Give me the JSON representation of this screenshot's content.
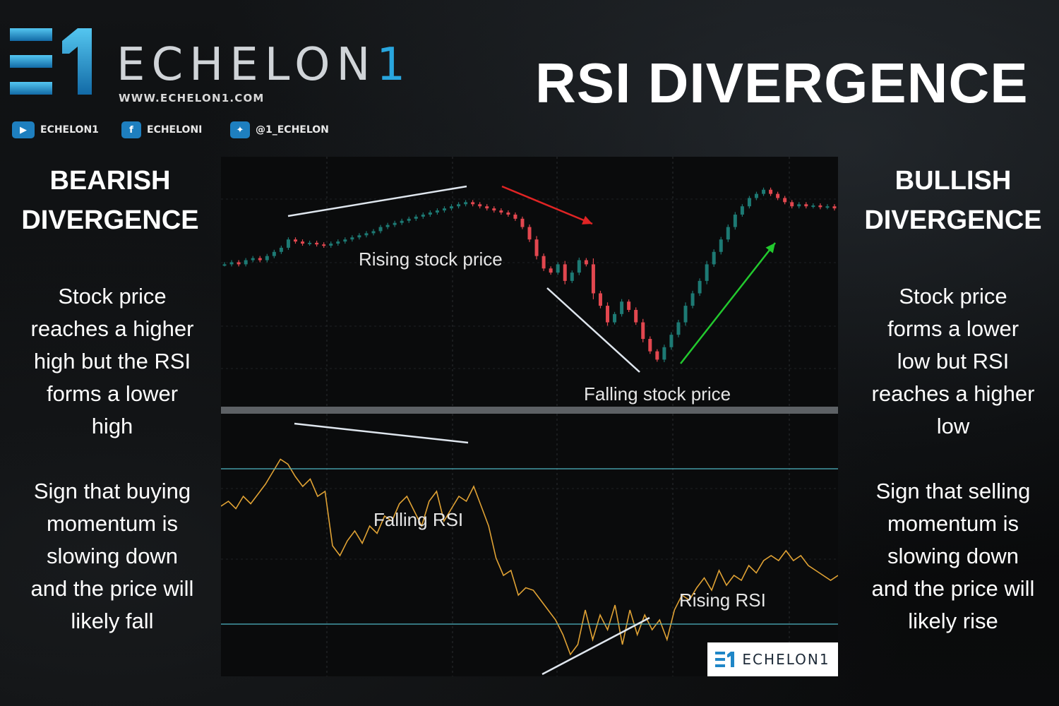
{
  "header": {
    "brand_name": "ECHELON",
    "brand_number": "1",
    "website": "WWW.ECHELON1.COM",
    "title": "RSI DIVERGENCE"
  },
  "social": [
    {
      "icon": "youtube-icon",
      "label": "ECHELON1"
    },
    {
      "icon": "facebook-icon",
      "label": "ECHELONI"
    },
    {
      "icon": "twitter-icon",
      "label": "@1_ECHELON"
    }
  ],
  "left": {
    "heading_1": "BEARISH",
    "heading_2": "DIVERGENCE",
    "lines_1": [
      "Stock price",
      "reaches a higher",
      "high but the RSI",
      "forms a lower",
      "high"
    ],
    "lines_2": [
      "Sign that buying",
      "momentum is",
      "slowing down",
      "and the price will",
      "likely fall"
    ]
  },
  "right": {
    "heading_1": "BULLISH",
    "heading_2": "DIVERGENCE",
    "lines_1": [
      "Stock price",
      "forms a lower",
      "low but RSI",
      "reaches a higher",
      "low"
    ],
    "lines_2": [
      "Sign that selling",
      "momentum is",
      "slowing down",
      "and the price will",
      "likely rise"
    ]
  },
  "chart_data": {
    "type": "line",
    "panels": [
      {
        "name": "price",
        "annotations": [
          "Rising stock price",
          "Falling stock price"
        ],
        "values": [
          62,
          62.5,
          62,
          63,
          63.5,
          63,
          64,
          65,
          66,
          68,
          67.5,
          67,
          67.2,
          66.8,
          66.5,
          67,
          67.5,
          68,
          68.5,
          69,
          69.5,
          70,
          71,
          71.5,
          72,
          72.5,
          73,
          73.5,
          74,
          74.5,
          75,
          75.5,
          76,
          76.5,
          77,
          76.5,
          76,
          75.5,
          75,
          74.5,
          74,
          73,
          71,
          68,
          64,
          61,
          60,
          62,
          58,
          60,
          63,
          62,
          55,
          52,
          48,
          50,
          53,
          51,
          48,
          44,
          41,
          39,
          42,
          45,
          48,
          52,
          55,
          58,
          62,
          65,
          68,
          71,
          74,
          76,
          78,
          79,
          80,
          79,
          78,
          77,
          76,
          76.5,
          76,
          76.2,
          75.8,
          76,
          75.5
        ],
        "colors": {
          "up": "#1d7a74",
          "down": "#e2474f"
        }
      },
      {
        "name": "rsi",
        "annotations": [
          "Falling RSI",
          "Rising RSI"
        ],
        "values": [
          66,
          68,
          65,
          70,
          67,
          71,
          75,
          80,
          85,
          83,
          78,
          74,
          77,
          70,
          72,
          50,
          46,
          52,
          56,
          51,
          58,
          55,
          62,
          60,
          67,
          70,
          64,
          58,
          68,
          72,
          60,
          65,
          70,
          68,
          74,
          66,
          58,
          45,
          38,
          40,
          30,
          33,
          32,
          28,
          24,
          20,
          14,
          6,
          10,
          24,
          12,
          22,
          16,
          26,
          10,
          24,
          14,
          22,
          16,
          20,
          12,
          24,
          30,
          28,
          33,
          37,
          32,
          40,
          34,
          38,
          36,
          42,
          39,
          44,
          46,
          44,
          48,
          44,
          46,
          42,
          40,
          38,
          36,
          38
        ],
        "levels": [
          70,
          30
        ]
      }
    ],
    "colors": {
      "rsi_line": "#e0a234",
      "level_line": "#4fb6c4",
      "bear_arrow": "#e02424",
      "bull_arrow": "#22c92e",
      "trendline": "#dfe6ee"
    }
  },
  "watermark": {
    "text": "ECHELON1"
  }
}
